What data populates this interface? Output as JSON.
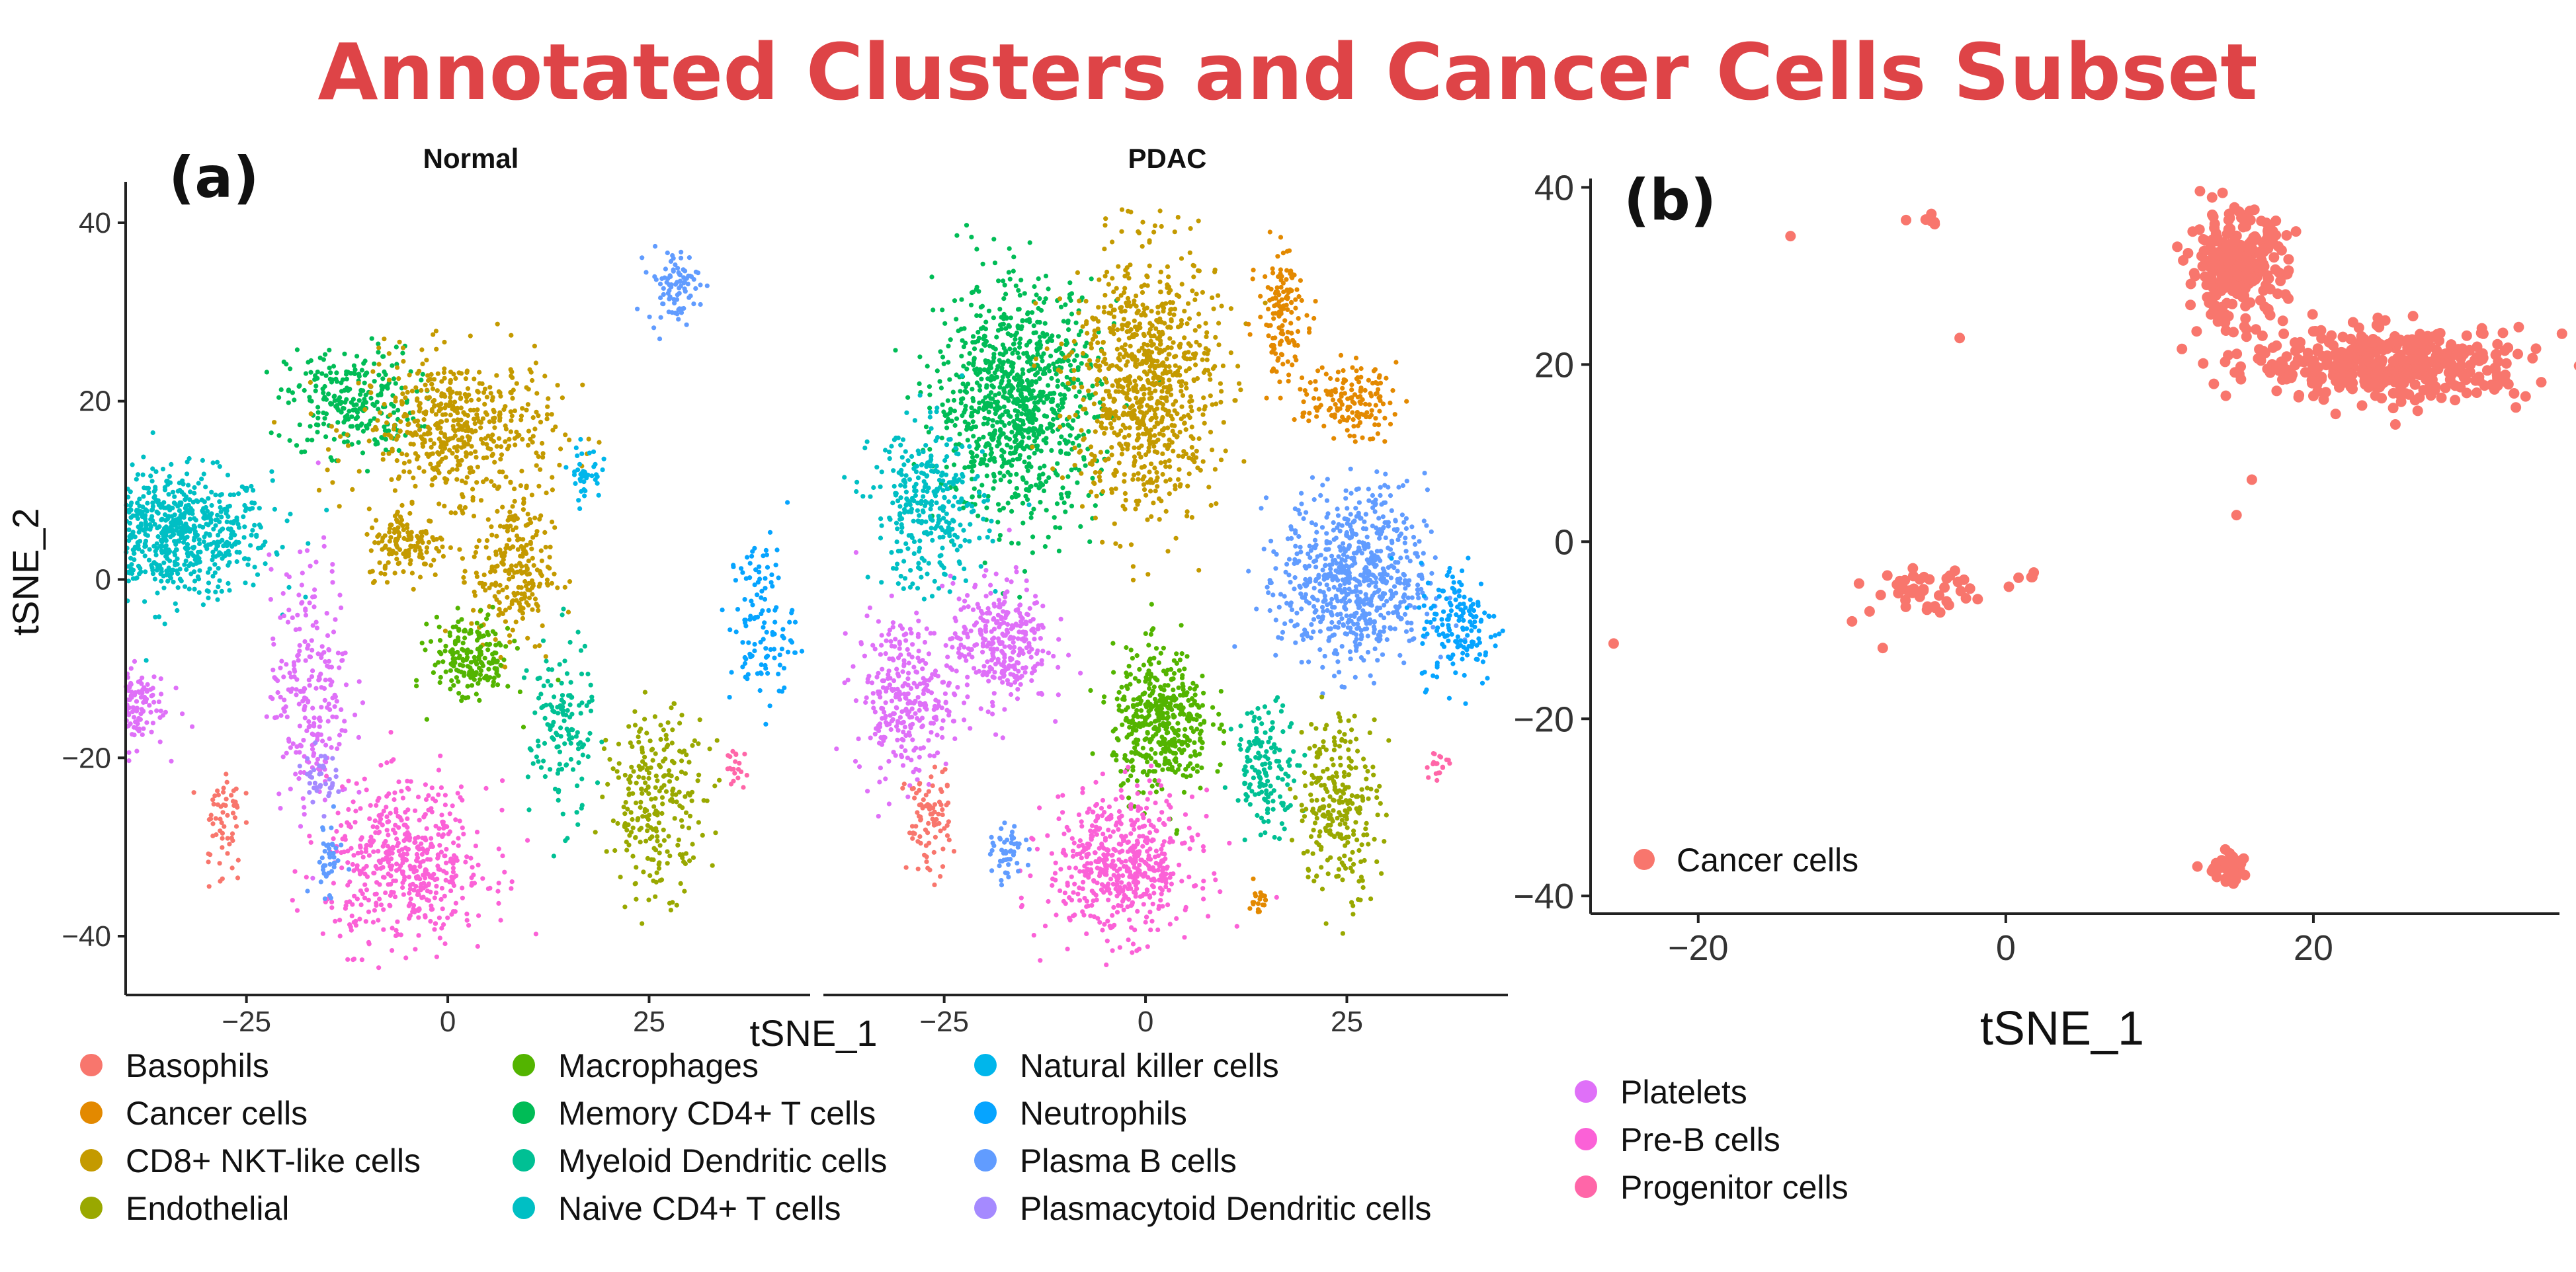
{
  "title": "Annotated Clusters and Cancer Cells Subset",
  "chart_data": [
    {
      "panel": "(a)",
      "type": "scatter",
      "description": "tSNE of annotated clusters faceted by condition",
      "facets": [
        "Normal",
        "PDAC"
      ],
      "xlabel": "tSNE_1",
      "ylabel": "tSNE_2",
      "xlim": [
        -40,
        45
      ],
      "ylim": [
        -44,
        42
      ],
      "xticks": [
        -25,
        0,
        25
      ],
      "yticks": [
        40,
        20,
        0,
        -20,
        -40
      ],
      "xtick_labels": [
        "−25",
        "0",
        "25"
      ],
      "ytick_labels": [
        "40",
        "20",
        "0",
        "−20",
        "−40"
      ],
      "legend": [
        {
          "name": "Basophils",
          "color": "#F8766D"
        },
        {
          "name": "Cancer cells",
          "color": "#E38900"
        },
        {
          "name": "CD8+ NKT-like cells",
          "color": "#C49A00"
        },
        {
          "name": "Endothelial",
          "color": "#99A800"
        },
        {
          "name": "Macrophages",
          "color": "#53B400"
        },
        {
          "name": "Memory CD4+ T cells",
          "color": "#00BC56"
        },
        {
          "name": "Myeloid Dendritic cells",
          "color": "#00C094"
        },
        {
          "name": "Naive CD4+ T cells",
          "color": "#00BFC4"
        },
        {
          "name": "Natural killer  cells",
          "color": "#00B6EB"
        },
        {
          "name": "Neutrophils",
          "color": "#06A4FF"
        },
        {
          "name": "Plasma B cells",
          "color": "#619CFF"
        },
        {
          "name": "Plasmacytoid Dendritic cells",
          "color": "#A58AFF"
        },
        {
          "name": "Platelets",
          "color": "#DF70F8"
        },
        {
          "name": "Pre-B cells",
          "color": "#FB61D7"
        },
        {
          "name": "Progenitor cells",
          "color": "#FF66A8"
        }
      ],
      "clusters": {
        "Normal": [
          {
            "type": "Naive CD4+ T cells",
            "x": -34,
            "y": 5,
            "sx": 6,
            "sy": 3.5,
            "n": 700
          },
          {
            "type": "Memory CD4+ T cells",
            "x": -12,
            "y": 20,
            "sx": 4,
            "sy": 3,
            "n": 260
          },
          {
            "type": "CD8+ NKT-like cells",
            "x": 1,
            "y": 17,
            "sx": 6,
            "sy": 4,
            "n": 520
          },
          {
            "type": "CD8+ NKT-like cells",
            "x": 8,
            "y": 1,
            "sx": 2.5,
            "sy": 4.5,
            "n": 240
          },
          {
            "type": "CD8+ NKT-like cells",
            "x": -5,
            "y": 4,
            "sx": 2.5,
            "sy": 2,
            "n": 140
          },
          {
            "type": "Natural killer  cells",
            "x": 17,
            "y": 12,
            "sx": 1,
            "sy": 1.5,
            "n": 40
          },
          {
            "type": "Plasma B cells",
            "x": 28,
            "y": 33,
            "sx": 1.6,
            "sy": 2,
            "n": 90
          },
          {
            "type": "Neutrophils",
            "x": 39,
            "y": -5,
            "sx": 2,
            "sy": 5,
            "n": 120
          },
          {
            "type": "Platelets",
            "x": -40,
            "y": -14,
            "sx": 2.5,
            "sy": 2.5,
            "n": 170
          },
          {
            "type": "Platelets",
            "x": -17,
            "y": -12,
            "sx": 2.5,
            "sy": 7,
            "n": 240
          },
          {
            "type": "Plasmacytoid Dendritic cells",
            "x": -16,
            "y": -22,
            "sx": 1,
            "sy": 1.5,
            "n": 40
          },
          {
            "type": "Basophils",
            "x": -28,
            "y": -27,
            "sx": 1.2,
            "sy": 3.5,
            "n": 60
          },
          {
            "type": "Pre-B cells",
            "x": -5,
            "y": -32,
            "sx": 5,
            "sy": 4.5,
            "n": 520
          },
          {
            "type": "Plasma B cells",
            "x": -15,
            "y": -31,
            "sx": 1,
            "sy": 2,
            "n": 40
          },
          {
            "type": "Macrophages",
            "x": 3,
            "y": -9,
            "sx": 2.5,
            "sy": 2.5,
            "n": 190
          },
          {
            "type": "Myeloid Dendritic cells",
            "x": 14,
            "y": -17,
            "sx": 2,
            "sy": 5,
            "n": 140
          },
          {
            "type": "Endothelial",
            "x": 26,
            "y": -25,
            "sx": 3,
            "sy": 5,
            "n": 260
          },
          {
            "type": "Progenitor cells",
            "x": 36,
            "y": -21,
            "sx": 1,
            "sy": 1,
            "n": 20
          }
        ],
        "PDAC": [
          {
            "type": "Memory CD4+ T cells",
            "x": -16,
            "y": 20,
            "sx": 5,
            "sy": 6.5,
            "n": 950
          },
          {
            "type": "Naive CD4+ T cells",
            "x": -27,
            "y": 8,
            "sx": 3.5,
            "sy": 4.5,
            "n": 320
          },
          {
            "type": "CD8+ NKT-like cells",
            "x": 0,
            "y": 22,
            "sx": 4.5,
            "sy": 7.5,
            "n": 850
          },
          {
            "type": "Cancer cells",
            "x": 17,
            "y": 30,
            "sx": 1.5,
            "sy": 3.5,
            "n": 140
          },
          {
            "type": "Cancer cells",
            "x": 25,
            "y": 20,
            "sx": 3,
            "sy": 2,
            "n": 150
          },
          {
            "type": "Plasma B cells",
            "x": 26,
            "y": 0,
            "sx": 4.5,
            "sy": 5,
            "n": 700
          },
          {
            "type": "Neutrophils",
            "x": 39,
            "y": -5,
            "sx": 2.5,
            "sy": 3.5,
            "n": 160
          },
          {
            "type": "Platelets",
            "x": -30,
            "y": -13,
            "sx": 3,
            "sy": 4.5,
            "n": 300
          },
          {
            "type": "Platelets",
            "x": -18,
            "y": -7,
            "sx": 3,
            "sy": 3.5,
            "n": 320
          },
          {
            "type": "Macrophages",
            "x": 2,
            "y": -16,
            "sx": 3,
            "sy": 4,
            "n": 450
          },
          {
            "type": "Pre-B cells",
            "x": -3,
            "y": -32,
            "sx": 4.5,
            "sy": 4,
            "n": 550
          },
          {
            "type": "Basophils",
            "x": -27,
            "y": -27,
            "sx": 1.4,
            "sy": 3,
            "n": 90
          },
          {
            "type": "Plasma B cells",
            "x": -17,
            "y": -31,
            "sx": 1,
            "sy": 1.5,
            "n": 50
          },
          {
            "type": "Myeloid Dendritic cells",
            "x": 15,
            "y": -21,
            "sx": 2,
            "sy": 3.5,
            "n": 150
          },
          {
            "type": "Endothelial",
            "x": 24,
            "y": -25,
            "sx": 2.5,
            "sy": 5,
            "n": 260
          },
          {
            "type": "Cancer cells",
            "x": 14,
            "y": -36,
            "sx": 0.5,
            "sy": 0.8,
            "n": 20
          },
          {
            "type": "Progenitor cells",
            "x": 36,
            "y": -21,
            "sx": 0.8,
            "sy": 1,
            "n": 20
          }
        ]
      }
    },
    {
      "panel": "(b)",
      "type": "scatter",
      "description": "Cancer cells subset",
      "xlabel": "tSNE_1",
      "ylabel": "",
      "xlim": [
        -27,
        36
      ],
      "ylim": [
        -42,
        41
      ],
      "xticks": [
        -20,
        0,
        20
      ],
      "yticks": [
        40,
        20,
        0,
        -20,
        -40
      ],
      "xtick_labels": [
        "−20",
        "0",
        "20"
      ],
      "ytick_labels": [
        "40",
        "20",
        "0",
        "−20",
        "−40"
      ],
      "legend": [
        {
          "name": "Cancer cells",
          "color": "#F8766D"
        }
      ],
      "clusters": [
        {
          "x": 15,
          "y": 31,
          "sx": 1.6,
          "sy": 3,
          "n": 260
        },
        {
          "x": 25,
          "y": 20,
          "sx": 4.5,
          "sy": 2,
          "n": 420
        },
        {
          "x": -5.5,
          "y": -5.5,
          "sx": 1.6,
          "sy": 1.2,
          "n": 45
        },
        {
          "x": 14.5,
          "y": -37,
          "sx": 0.8,
          "sy": 0.8,
          "n": 40
        },
        {
          "x": -5,
          "y": 36,
          "sx": 0.5,
          "sy": 0.4,
          "n": 6
        },
        {
          "x": 1.5,
          "y": -4,
          "sx": 0.4,
          "sy": 0.3,
          "n": 4
        }
      ],
      "singletons": [
        [
          -14,
          34.5
        ],
        [
          -3,
          23
        ],
        [
          -25.5,
          -11.5
        ],
        [
          16,
          7
        ],
        [
          15,
          3
        ],
        [
          -10,
          -9
        ],
        [
          -8,
          -12
        ]
      ]
    }
  ]
}
